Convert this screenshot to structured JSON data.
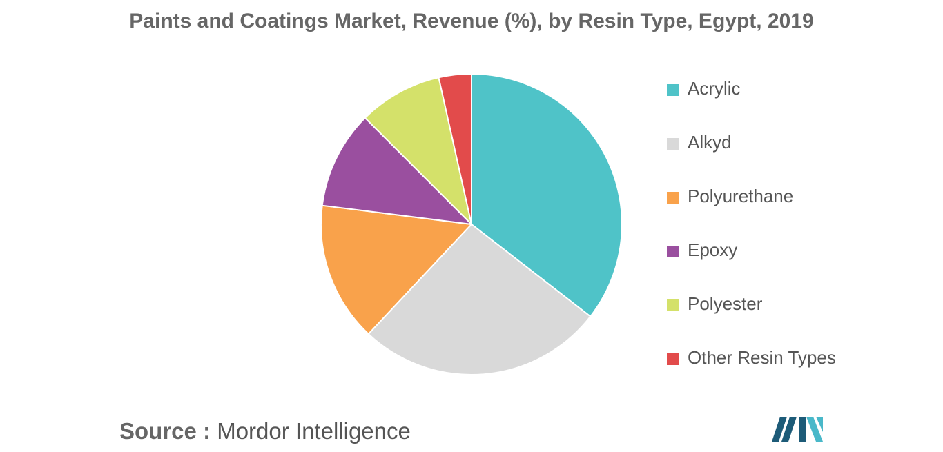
{
  "chart_data": {
    "type": "pie",
    "title": "Paints and Coatings Market, Revenue (%), by Resin Type, Egypt, 2019",
    "categories": [
      "Acrylic",
      "Alkyd",
      "Polyurethane",
      "Epoxy",
      "Polyester",
      "Other Resin Types"
    ],
    "values": [
      35.5,
      26.5,
      15,
      10.5,
      9,
      3.5
    ],
    "unit": "%",
    "colors": [
      "#4fc3c8",
      "#d9d9d9",
      "#f9a24b",
      "#9a4f9f",
      "#d4e16a",
      "#e24b4b"
    ],
    "legend_position": "right",
    "start_angle": "top, clockwise"
  },
  "source": {
    "label": "Source :",
    "text": "Mordor Intelligence"
  },
  "logo": {
    "icon": "mordor-intelligence-logo-icon",
    "colors": [
      "#1d5b78",
      "#49b8c9"
    ]
  }
}
